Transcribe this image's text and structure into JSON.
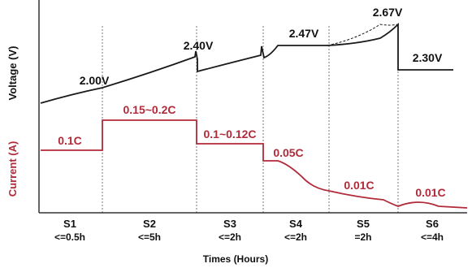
{
  "chart_data": {
    "type": "line",
    "title": "",
    "xlabel": "Times (Hours)",
    "ylabels": {
      "voltage": "Voltage (V)",
      "current": "Current (A)"
    },
    "colors": {
      "voltage": "#1a1a1a",
      "current": "#b02a3a",
      "axis": "#333333",
      "divider": "#777777"
    },
    "grid": false,
    "stages": [
      {
        "name": "S1",
        "duration": "<=0.5h"
      },
      {
        "name": "S2",
        "duration": "<=5h"
      },
      {
        "name": "S3",
        "duration": "<=2h"
      },
      {
        "name": "S4",
        "duration": "<=2h"
      },
      {
        "name": "S5",
        "duration": "=2h"
      },
      {
        "name": "S6",
        "duration": "<=4h"
      }
    ],
    "voltage_labels": [
      "2.00V",
      "2.40V",
      "2.47V",
      "2.67V",
      "2.30V"
    ],
    "current_labels": [
      "0.1C",
      "0.15~0.2C",
      "0.1~0.12C",
      "0.05C",
      "0.01C",
      "0.01C"
    ]
  }
}
